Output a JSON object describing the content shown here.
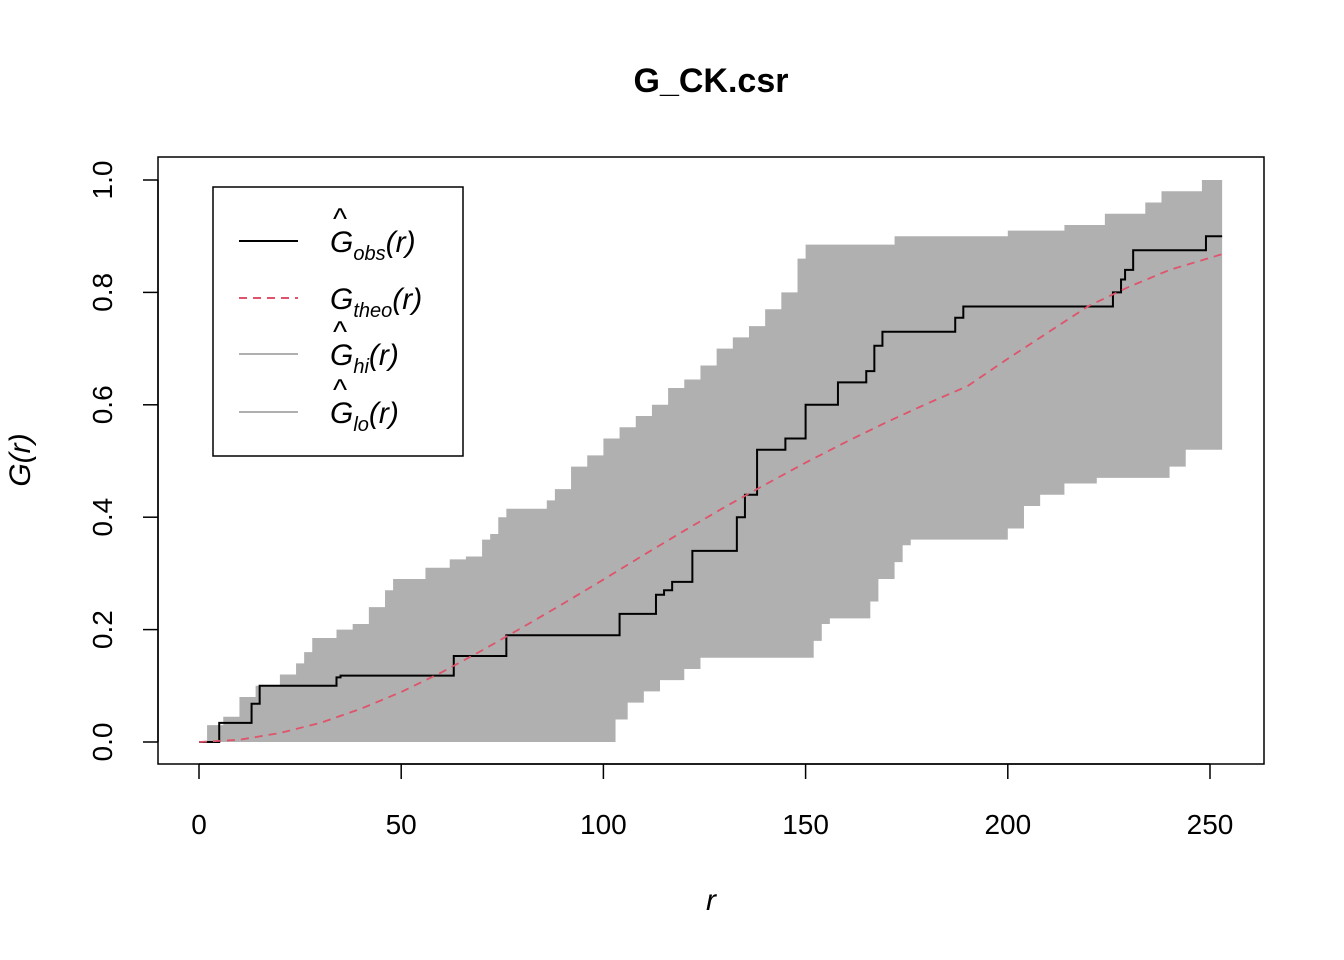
{
  "chart_data": {
    "type": "line",
    "title": "G_CK.csr",
    "xlabel": "r",
    "ylabel": "G(r)",
    "xlim": [
      0,
      253
    ],
    "ylim": [
      0,
      1.0
    ],
    "xticks": [
      0,
      50,
      100,
      150,
      200,
      250
    ],
    "yticks": [
      0.0,
      0.2,
      0.4,
      0.6,
      0.8,
      1.0
    ],
    "xtick_labels": [
      "0",
      "50",
      "100",
      "150",
      "200",
      "250"
    ],
    "ytick_labels": [
      "0.0",
      "0.2",
      "0.4",
      "0.6",
      "0.8",
      "1.0"
    ],
    "grid": false,
    "legend_position": "top-left",
    "legend": [
      {
        "key": "obs",
        "base": "G",
        "hat": true,
        "sub": "obs",
        "arg": "(r)",
        "color": "#000000",
        "dash": false
      },
      {
        "key": "theo",
        "base": "G",
        "hat": false,
        "sub": "theo",
        "arg": "(r)",
        "color": "#DF536B",
        "dash": true
      },
      {
        "key": "hi",
        "base": "G",
        "hat": true,
        "sub": "hi",
        "arg": "(r)",
        "color": "#B0B0B0",
        "dash": false
      },
      {
        "key": "lo",
        "base": "G",
        "hat": true,
        "sub": "lo",
        "arg": "(r)",
        "color": "#B0B0B0",
        "dash": false
      }
    ],
    "envelope_color": "#B0B0B0",
    "series": [
      {
        "name": "obs",
        "color": "#000000",
        "step": true,
        "points": [
          [
            0,
            0
          ],
          [
            5,
            0
          ],
          [
            5,
            0.034
          ],
          [
            13,
            0.034
          ],
          [
            13,
            0.068
          ],
          [
            15,
            0.068
          ],
          [
            15,
            0.1
          ],
          [
            34,
            0.1
          ],
          [
            34,
            0.115
          ],
          [
            35,
            0.115
          ],
          [
            35,
            0.118
          ],
          [
            63,
            0.118
          ],
          [
            63,
            0.153
          ],
          [
            76,
            0.153
          ],
          [
            76,
            0.19
          ],
          [
            104,
            0.19
          ],
          [
            104,
            0.228
          ],
          [
            113,
            0.228
          ],
          [
            113,
            0.262
          ],
          [
            115,
            0.262
          ],
          [
            115,
            0.27
          ],
          [
            117,
            0.27
          ],
          [
            117,
            0.285
          ],
          [
            122,
            0.285
          ],
          [
            122,
            0.34
          ],
          [
            133,
            0.34
          ],
          [
            133,
            0.4
          ],
          [
            135,
            0.4
          ],
          [
            135,
            0.44
          ],
          [
            138,
            0.44
          ],
          [
            138,
            0.52
          ],
          [
            145,
            0.52
          ],
          [
            145,
            0.54
          ],
          [
            150,
            0.54
          ],
          [
            150,
            0.6
          ],
          [
            158,
            0.6
          ],
          [
            158,
            0.64
          ],
          [
            165,
            0.64
          ],
          [
            165,
            0.66
          ],
          [
            167,
            0.66
          ],
          [
            167,
            0.705
          ],
          [
            169,
            0.705
          ],
          [
            169,
            0.73
          ],
          [
            187,
            0.73
          ],
          [
            187,
            0.755
          ],
          [
            189,
            0.755
          ],
          [
            189,
            0.775
          ],
          [
            226,
            0.775
          ],
          [
            226,
            0.8
          ],
          [
            228,
            0.8
          ],
          [
            228,
            0.823
          ],
          [
            229,
            0.823
          ],
          [
            229,
            0.84
          ],
          [
            231,
            0.84
          ],
          [
            231,
            0.875
          ],
          [
            249,
            0.875
          ],
          [
            249,
            0.9
          ],
          [
            253,
            0.9
          ]
        ]
      },
      {
        "name": "theo",
        "color": "#DF536B",
        "step": false,
        "points": [
          [
            0,
            0.0
          ],
          [
            10,
            0.004
          ],
          [
            20,
            0.016
          ],
          [
            30,
            0.034
          ],
          [
            40,
            0.059
          ],
          [
            50,
            0.089
          ],
          [
            60,
            0.124
          ],
          [
            70,
            0.163
          ],
          [
            80,
            0.204
          ],
          [
            90,
            0.246
          ],
          [
            100,
            0.289
          ],
          [
            110,
            0.333
          ],
          [
            120,
            0.376
          ],
          [
            130,
            0.418
          ],
          [
            140,
            0.458
          ],
          [
            150,
            0.497
          ],
          [
            160,
            0.534
          ],
          [
            170,
            0.569
          ],
          [
            180,
            0.602
          ],
          [
            190,
            0.633
          ],
          [
            200,
            0.682
          ],
          [
            210,
            0.729
          ],
          [
            220,
            0.776
          ],
          [
            230,
            0.81
          ],
          [
            240,
            0.84
          ],
          [
            253,
            0.868
          ]
        ]
      }
    ],
    "envelope_hi": [
      [
        0,
        0
      ],
      [
        2,
        0.03
      ],
      [
        6,
        0.045
      ],
      [
        10,
        0.08
      ],
      [
        14,
        0.1
      ],
      [
        20,
        0.12
      ],
      [
        24,
        0.14
      ],
      [
        26,
        0.16
      ],
      [
        28,
        0.185
      ],
      [
        34,
        0.2
      ],
      [
        38,
        0.21
      ],
      [
        42,
        0.24
      ],
      [
        46,
        0.27
      ],
      [
        48,
        0.29
      ],
      [
        56,
        0.31
      ],
      [
        62,
        0.325
      ],
      [
        66,
        0.33
      ],
      [
        70,
        0.36
      ],
      [
        72,
        0.37
      ],
      [
        74,
        0.4
      ],
      [
        76,
        0.415
      ],
      [
        86,
        0.43
      ],
      [
        88,
        0.45
      ],
      [
        92,
        0.49
      ],
      [
        96,
        0.51
      ],
      [
        100,
        0.54
      ],
      [
        104,
        0.56
      ],
      [
        108,
        0.58
      ],
      [
        112,
        0.6
      ],
      [
        116,
        0.63
      ],
      [
        120,
        0.645
      ],
      [
        124,
        0.67
      ],
      [
        128,
        0.7
      ],
      [
        132,
        0.72
      ],
      [
        136,
        0.74
      ],
      [
        140,
        0.77
      ],
      [
        144,
        0.8
      ],
      [
        148,
        0.86
      ],
      [
        150,
        0.885
      ],
      [
        168,
        0.885
      ],
      [
        172,
        0.9
      ],
      [
        200,
        0.91
      ],
      [
        214,
        0.92
      ],
      [
        224,
        0.94
      ],
      [
        234,
        0.96
      ],
      [
        238,
        0.98
      ],
      [
        248,
        1.0
      ],
      [
        253,
        1.0
      ]
    ],
    "envelope_lo": [
      [
        0,
        0
      ],
      [
        103,
        0
      ],
      [
        106,
        0.04
      ],
      [
        110,
        0.07
      ],
      [
        114,
        0.09
      ],
      [
        120,
        0.11
      ],
      [
        124,
        0.13
      ],
      [
        128,
        0.15
      ],
      [
        152,
        0.15
      ],
      [
        154,
        0.18
      ],
      [
        156,
        0.21
      ],
      [
        166,
        0.22
      ],
      [
        168,
        0.25
      ],
      [
        172,
        0.29
      ],
      [
        174,
        0.32
      ],
      [
        176,
        0.35
      ],
      [
        200,
        0.36
      ],
      [
        204,
        0.38
      ],
      [
        208,
        0.42
      ],
      [
        214,
        0.44
      ],
      [
        216,
        0.46
      ],
      [
        222,
        0.46
      ],
      [
        240,
        0.47
      ],
      [
        244,
        0.49
      ],
      [
        250,
        0.52
      ],
      [
        253,
        0.52
      ]
    ]
  }
}
